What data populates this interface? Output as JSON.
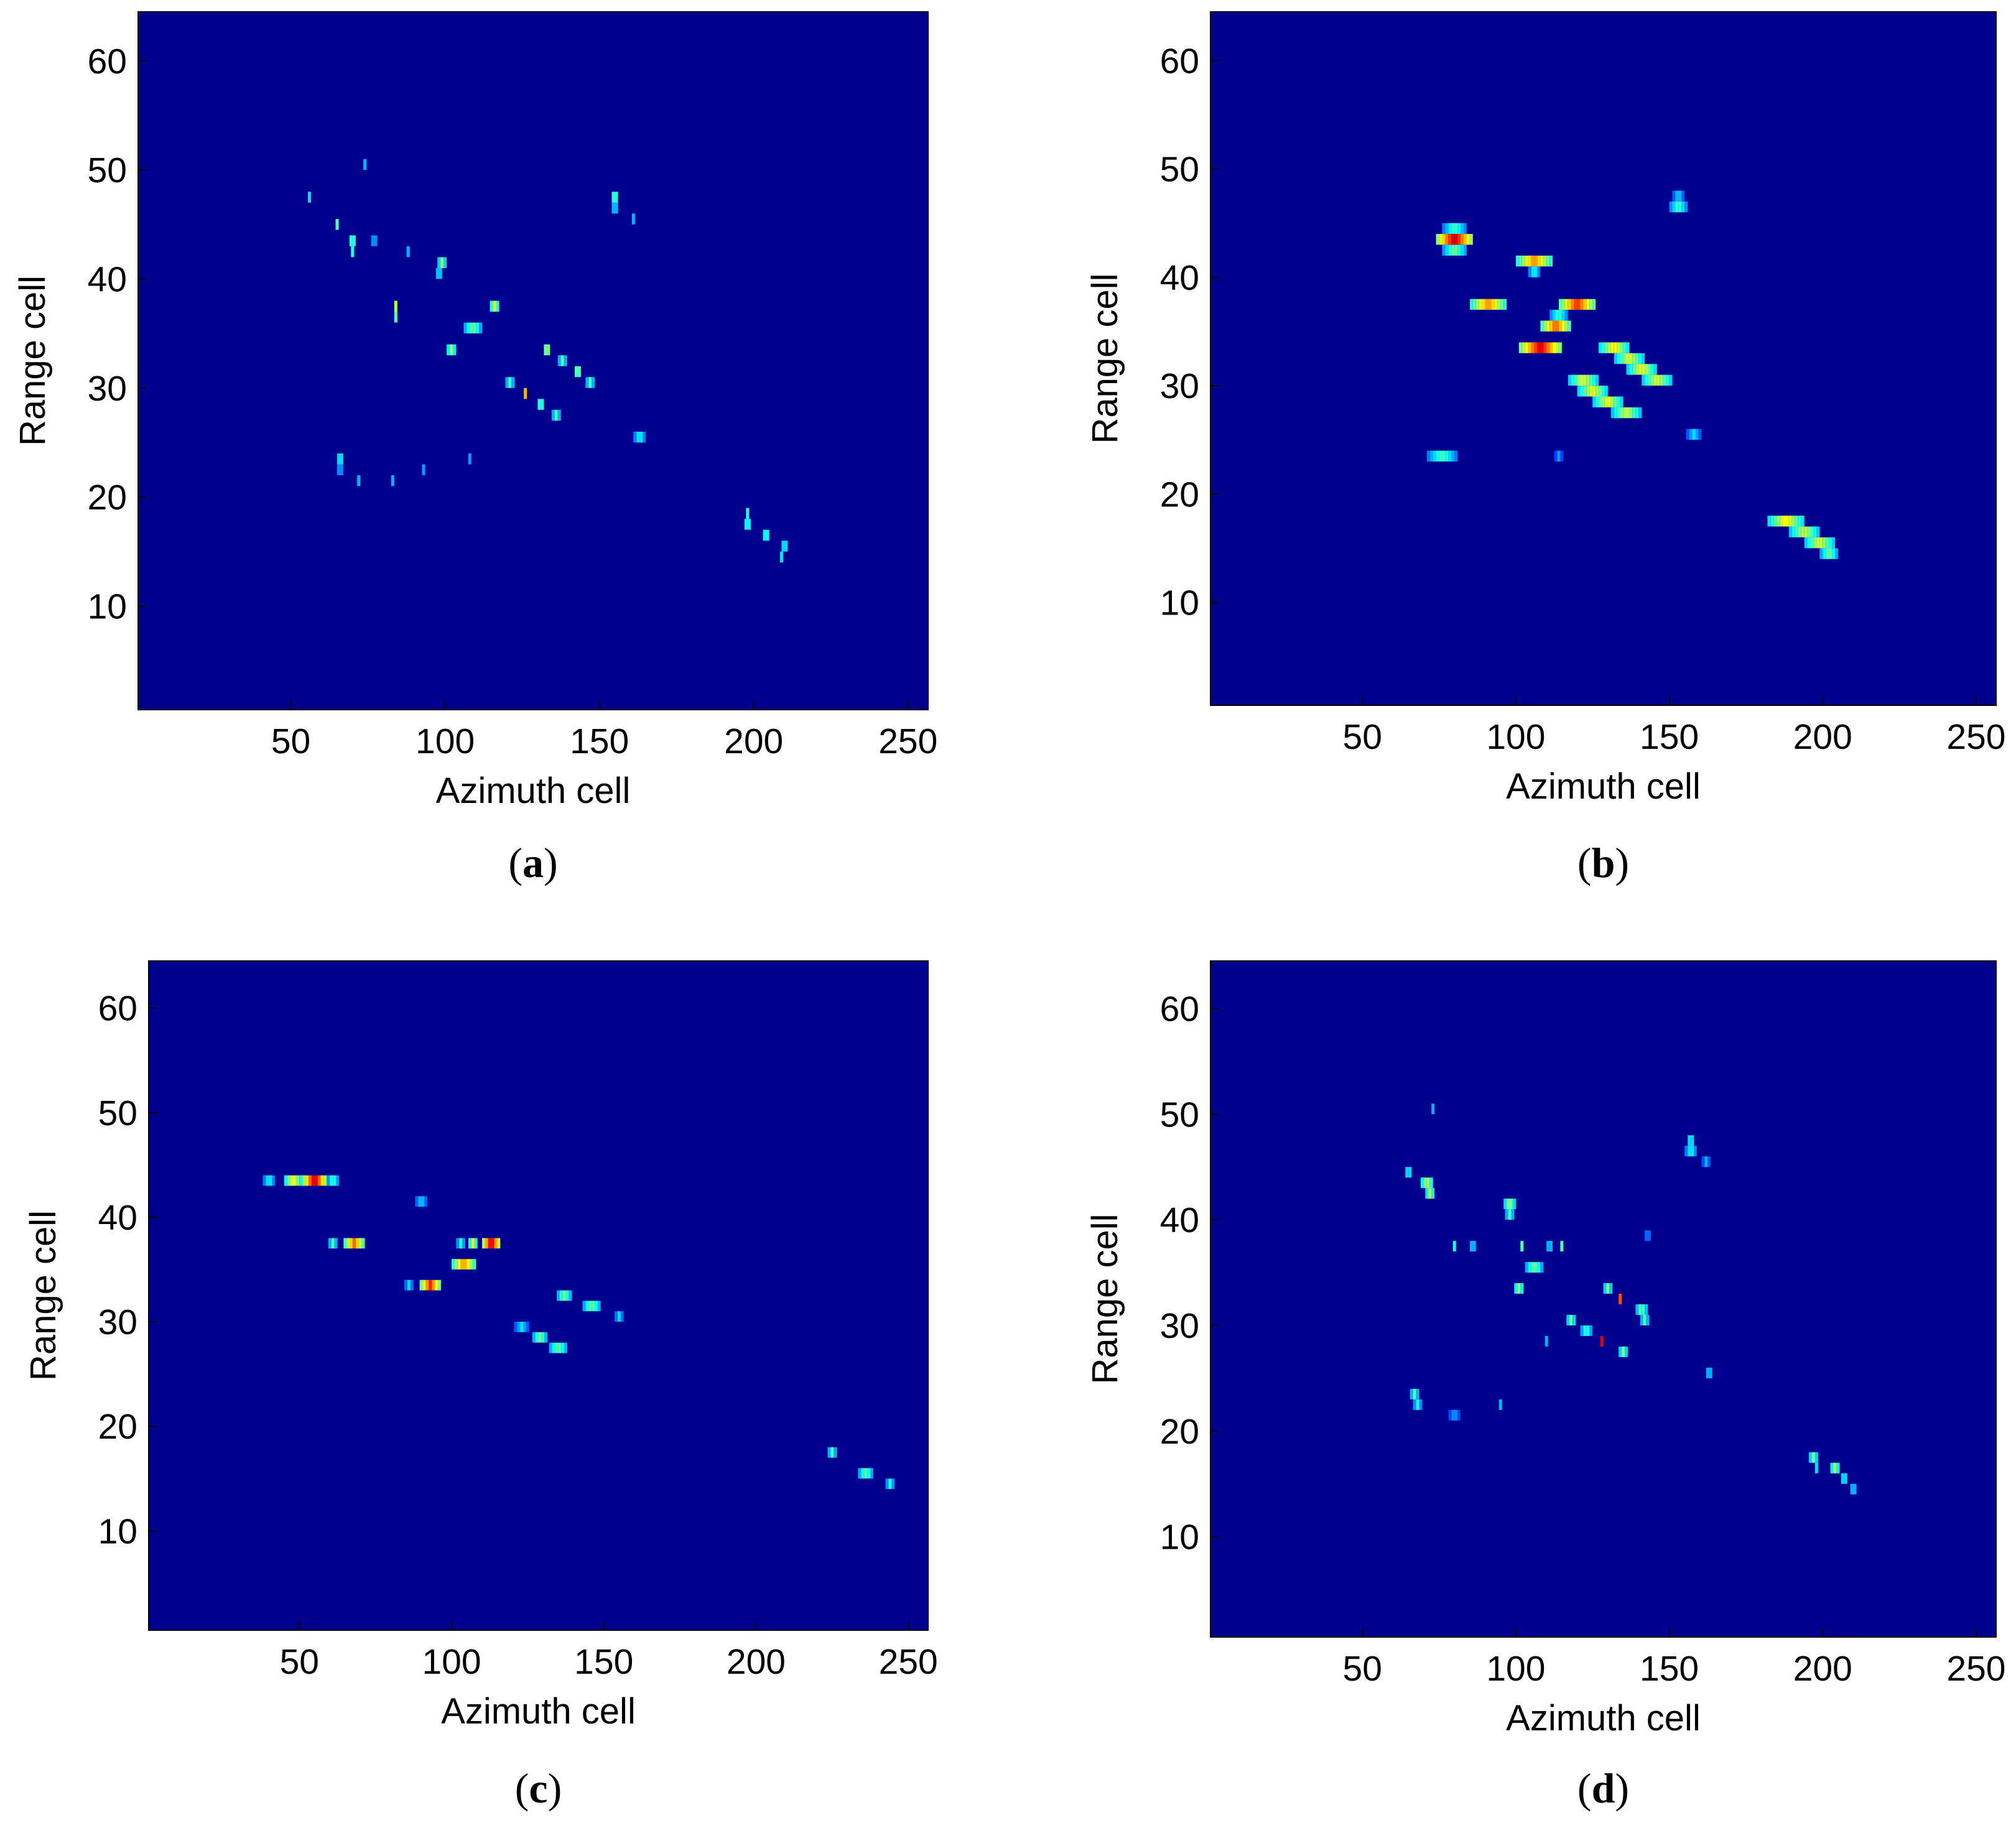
{
  "colors": {
    "background": "#00008F",
    "colormap": "jet"
  },
  "chart_data": [
    {
      "panel": "a",
      "label": "a",
      "type": "heatmap",
      "xlabel": "Azimuth cell",
      "ylabel": "Range cell",
      "xlim": [
        1,
        256
      ],
      "ylim": [
        1,
        64
      ],
      "xticks": [
        50,
        100,
        150,
        200,
        250
      ],
      "yticks": [
        10,
        20,
        30,
        40,
        50,
        60
      ],
      "grid": false,
      "blobs": [
        {
          "x": 56,
          "y": 47.5,
          "w": 1,
          "v": 0.35
        },
        {
          "x": 65,
          "y": 45,
          "w": 1,
          "v": 0.45
        },
        {
          "x": 70,
          "y": 43.5,
          "w": 2,
          "v": 0.55
        },
        {
          "x": 70,
          "y": 42.5,
          "w": 1,
          "v": 0.4
        },
        {
          "x": 74,
          "y": 50.5,
          "w": 1,
          "v": 0.3
        },
        {
          "x": 77,
          "y": 43.5,
          "w": 2,
          "v": 0.35
        },
        {
          "x": 84,
          "y": 37.5,
          "w": 1,
          "v": 0.55
        },
        {
          "x": 84,
          "y": 36.5,
          "w": 1,
          "v": 0.45
        },
        {
          "x": 88,
          "y": 42.5,
          "w": 1,
          "v": 0.3
        },
        {
          "x": 99,
          "y": 41.5,
          "w": 3,
          "v": 0.5
        },
        {
          "x": 98,
          "y": 40.5,
          "w": 2,
          "v": 0.42
        },
        {
          "x": 102,
          "y": 33.5,
          "w": 3,
          "v": 0.55
        },
        {
          "x": 109,
          "y": 35.5,
          "w": 6,
          "v": 0.5
        },
        {
          "x": 116,
          "y": 37.5,
          "w": 3,
          "v": 0.6
        },
        {
          "x": 121,
          "y": 30.5,
          "w": 3,
          "v": 0.45
        },
        {
          "x": 126,
          "y": 29.5,
          "w": 1,
          "v": 0.7
        },
        {
          "x": 131,
          "y": 28.5,
          "w": 2,
          "v": 0.55
        },
        {
          "x": 133,
          "y": 33.5,
          "w": 2,
          "v": 0.65
        },
        {
          "x": 136,
          "y": 27.5,
          "w": 3,
          "v": 0.45
        },
        {
          "x": 138,
          "y": 32.5,
          "w": 3,
          "v": 0.45
        },
        {
          "x": 143,
          "y": 31.5,
          "w": 2,
          "v": 0.6
        },
        {
          "x": 147,
          "y": 30.5,
          "w": 3,
          "v": 0.45
        },
        {
          "x": 155,
          "y": 47.5,
          "w": 2,
          "v": 0.55
        },
        {
          "x": 155,
          "y": 46.5,
          "w": 2,
          "v": 0.4
        },
        {
          "x": 161,
          "y": 45.5,
          "w": 1,
          "v": 0.3
        },
        {
          "x": 163,
          "y": 25.5,
          "w": 4,
          "v": 0.4
        },
        {
          "x": 66,
          "y": 23.5,
          "w": 2,
          "v": 0.45
        },
        {
          "x": 66,
          "y": 22.5,
          "w": 2,
          "v": 0.35
        },
        {
          "x": 72,
          "y": 21.5,
          "w": 1,
          "v": 0.3
        },
        {
          "x": 83,
          "y": 21.5,
          "w": 1,
          "v": 0.3
        },
        {
          "x": 93,
          "y": 22.5,
          "w": 1,
          "v": 0.28
        },
        {
          "x": 108,
          "y": 23.5,
          "w": 1,
          "v": 0.28
        },
        {
          "x": 198,
          "y": 17.5,
          "w": 2,
          "v": 0.5
        },
        {
          "x": 198,
          "y": 18.5,
          "w": 1,
          "v": 0.4
        },
        {
          "x": 204,
          "y": 16.5,
          "w": 2,
          "v": 0.5
        },
        {
          "x": 210,
          "y": 15.5,
          "w": 2,
          "v": 0.45
        },
        {
          "x": 209,
          "y": 14.5,
          "w": 1,
          "v": 0.35
        }
      ]
    },
    {
      "panel": "b",
      "label": "b",
      "type": "heatmap",
      "xlabel": "Azimuth cell",
      "ylabel": "Range cell",
      "xlim": [
        1,
        256
      ],
      "ylim": [
        1,
        64
      ],
      "xticks": [
        50,
        100,
        150,
        200,
        250
      ],
      "yticks": [
        10,
        20,
        30,
        40,
        50,
        60
      ],
      "grid": false,
      "blobs": [
        {
          "x": 80,
          "y": 43.5,
          "w": 12,
          "v": 0.95
        },
        {
          "x": 80,
          "y": 44.5,
          "w": 8,
          "v": 0.45
        },
        {
          "x": 80,
          "y": 42.5,
          "w": 8,
          "v": 0.5
        },
        {
          "x": 106,
          "y": 41.5,
          "w": 12,
          "v": 0.75
        },
        {
          "x": 106,
          "y": 40.5,
          "w": 4,
          "v": 0.4
        },
        {
          "x": 91,
          "y": 37.5,
          "w": 12,
          "v": 0.75
        },
        {
          "x": 120,
          "y": 37.5,
          "w": 12,
          "v": 0.85
        },
        {
          "x": 114,
          "y": 36.5,
          "w": 6,
          "v": 0.45
        },
        {
          "x": 113,
          "y": 35.5,
          "w": 10,
          "v": 0.8
        },
        {
          "x": 108,
          "y": 33.5,
          "w": 14,
          "v": 0.92
        },
        {
          "x": 132,
          "y": 33.5,
          "w": 10,
          "v": 0.65
        },
        {
          "x": 137,
          "y": 32.5,
          "w": 10,
          "v": 0.6
        },
        {
          "x": 141,
          "y": 31.5,
          "w": 10,
          "v": 0.62
        },
        {
          "x": 146,
          "y": 30.5,
          "w": 10,
          "v": 0.6
        },
        {
          "x": 122,
          "y": 30.5,
          "w": 10,
          "v": 0.6
        },
        {
          "x": 125,
          "y": 29.5,
          "w": 10,
          "v": 0.62
        },
        {
          "x": 130,
          "y": 28.5,
          "w": 10,
          "v": 0.62
        },
        {
          "x": 136,
          "y": 27.5,
          "w": 10,
          "v": 0.58
        },
        {
          "x": 153,
          "y": 46.5,
          "w": 6,
          "v": 0.45
        },
        {
          "x": 153,
          "y": 47.5,
          "w": 4,
          "v": 0.35
        },
        {
          "x": 158,
          "y": 25.5,
          "w": 5,
          "v": 0.35
        },
        {
          "x": 76,
          "y": 23.5,
          "w": 10,
          "v": 0.45
        },
        {
          "x": 114,
          "y": 23.5,
          "w": 3,
          "v": 0.28
        },
        {
          "x": 188,
          "y": 17.5,
          "w": 12,
          "v": 0.65
        },
        {
          "x": 194,
          "y": 16.5,
          "w": 10,
          "v": 0.58
        },
        {
          "x": 199,
          "y": 15.5,
          "w": 10,
          "v": 0.6
        },
        {
          "x": 202,
          "y": 14.5,
          "w": 6,
          "v": 0.5
        }
      ]
    },
    {
      "panel": "c",
      "label": "c",
      "type": "heatmap",
      "xlabel": "Azimuth cell",
      "ylabel": "Range cell",
      "xlim": [
        1,
        256
      ],
      "ylim": [
        1,
        64
      ],
      "xticks": [
        50,
        100,
        150,
        200,
        250
      ],
      "yticks": [
        10,
        20,
        30,
        40,
        50,
        60
      ],
      "grid": false,
      "blobs": [
        {
          "x": 40,
          "y": 43.5,
          "w": 4,
          "v": 0.4
        },
        {
          "x": 48,
          "y": 43.5,
          "w": 6,
          "v": 0.65
        },
        {
          "x": 55,
          "y": 43.5,
          "w": 8,
          "v": 0.95
        },
        {
          "x": 61,
          "y": 43.5,
          "w": 4,
          "v": 0.45
        },
        {
          "x": 90,
          "y": 41.5,
          "w": 4,
          "v": 0.35
        },
        {
          "x": 61,
          "y": 37.5,
          "w": 3,
          "v": 0.45
        },
        {
          "x": 68,
          "y": 37.5,
          "w": 7,
          "v": 0.78
        },
        {
          "x": 103,
          "y": 37.5,
          "w": 3,
          "v": 0.4
        },
        {
          "x": 107,
          "y": 37.5,
          "w": 3,
          "v": 0.6
        },
        {
          "x": 113,
          "y": 37.5,
          "w": 6,
          "v": 0.95
        },
        {
          "x": 104,
          "y": 35.5,
          "w": 8,
          "v": 0.75
        },
        {
          "x": 86,
          "y": 33.5,
          "w": 3,
          "v": 0.35
        },
        {
          "x": 93,
          "y": 33.5,
          "w": 7,
          "v": 0.85
        },
        {
          "x": 137,
          "y": 32.5,
          "w": 5,
          "v": 0.5
        },
        {
          "x": 146,
          "y": 31.5,
          "w": 6,
          "v": 0.5
        },
        {
          "x": 155,
          "y": 30.5,
          "w": 3,
          "v": 0.35
        },
        {
          "x": 123,
          "y": 29.5,
          "w": 5,
          "v": 0.35
        },
        {
          "x": 129,
          "y": 28.5,
          "w": 5,
          "v": 0.5
        },
        {
          "x": 135,
          "y": 27.5,
          "w": 6,
          "v": 0.5
        },
        {
          "x": 225,
          "y": 17.5,
          "w": 3,
          "v": 0.45
        },
        {
          "x": 236,
          "y": 15.5,
          "w": 5,
          "v": 0.48
        },
        {
          "x": 244,
          "y": 14.5,
          "w": 3,
          "v": 0.4
        }
      ]
    },
    {
      "panel": "d",
      "label": "d",
      "type": "heatmap",
      "xlabel": "Azimuth cell",
      "ylabel": "Range cell",
      "xlim": [
        1,
        256
      ],
      "ylim": [
        1,
        64
      ],
      "xticks": [
        50,
        100,
        150,
        200,
        250
      ],
      "yticks": [
        10,
        20,
        30,
        40,
        50,
        60
      ],
      "grid": false,
      "blobs": [
        {
          "x": 65,
          "y": 44.5,
          "w": 2,
          "v": 0.45
        },
        {
          "x": 71,
          "y": 43.5,
          "w": 4,
          "v": 0.6
        },
        {
          "x": 72,
          "y": 42.5,
          "w": 3,
          "v": 0.55
        },
        {
          "x": 73,
          "y": 50.5,
          "w": 1,
          "v": 0.3
        },
        {
          "x": 80,
          "y": 37.5,
          "w": 1,
          "v": 0.4
        },
        {
          "x": 86,
          "y": 37.5,
          "w": 2,
          "v": 0.4
        },
        {
          "x": 98,
          "y": 41.5,
          "w": 4,
          "v": 0.55
        },
        {
          "x": 98,
          "y": 40.5,
          "w": 3,
          "v": 0.45
        },
        {
          "x": 101,
          "y": 33.5,
          "w": 3,
          "v": 0.55
        },
        {
          "x": 106,
          "y": 35.5,
          "w": 6,
          "v": 0.5
        },
        {
          "x": 102,
          "y": 37.5,
          "w": 1,
          "v": 0.45
        },
        {
          "x": 111,
          "y": 37.5,
          "w": 2,
          "v": 0.4
        },
        {
          "x": 115,
          "y": 37.5,
          "w": 1,
          "v": 0.45
        },
        {
          "x": 118,
          "y": 30.5,
          "w": 3,
          "v": 0.5
        },
        {
          "x": 123,
          "y": 29.5,
          "w": 4,
          "v": 0.45
        },
        {
          "x": 128,
          "y": 28.5,
          "w": 1,
          "v": 0.9
        },
        {
          "x": 130,
          "y": 33.5,
          "w": 3,
          "v": 0.5
        },
        {
          "x": 134,
          "y": 32.5,
          "w": 1,
          "v": 0.8
        },
        {
          "x": 135,
          "y": 27.5,
          "w": 3,
          "v": 0.5
        },
        {
          "x": 141,
          "y": 31.5,
          "w": 4,
          "v": 0.5
        },
        {
          "x": 142,
          "y": 30.5,
          "w": 3,
          "v": 0.45
        },
        {
          "x": 110,
          "y": 28.5,
          "w": 1,
          "v": 0.3
        },
        {
          "x": 143,
          "y": 38.5,
          "w": 2,
          "v": 0.3
        },
        {
          "x": 157,
          "y": 47.5,
          "w": 2,
          "v": 0.45
        },
        {
          "x": 157,
          "y": 46.5,
          "w": 4,
          "v": 0.4
        },
        {
          "x": 162,
          "y": 45.5,
          "w": 3,
          "v": 0.3
        },
        {
          "x": 163,
          "y": 25.5,
          "w": 2,
          "v": 0.4
        },
        {
          "x": 67,
          "y": 23.5,
          "w": 3,
          "v": 0.45
        },
        {
          "x": 68,
          "y": 22.5,
          "w": 3,
          "v": 0.4
        },
        {
          "x": 80,
          "y": 21.5,
          "w": 4,
          "v": 0.3
        },
        {
          "x": 95,
          "y": 22.5,
          "w": 1,
          "v": 0.3
        },
        {
          "x": 197,
          "y": 17.5,
          "w": 3,
          "v": 0.5
        },
        {
          "x": 198,
          "y": 16.5,
          "w": 1,
          "v": 0.35
        },
        {
          "x": 204,
          "y": 16.5,
          "w": 3,
          "v": 0.55
        },
        {
          "x": 207,
          "y": 15.5,
          "w": 2,
          "v": 0.45
        },
        {
          "x": 210,
          "y": 14.5,
          "w": 2,
          "v": 0.4
        }
      ]
    }
  ]
}
